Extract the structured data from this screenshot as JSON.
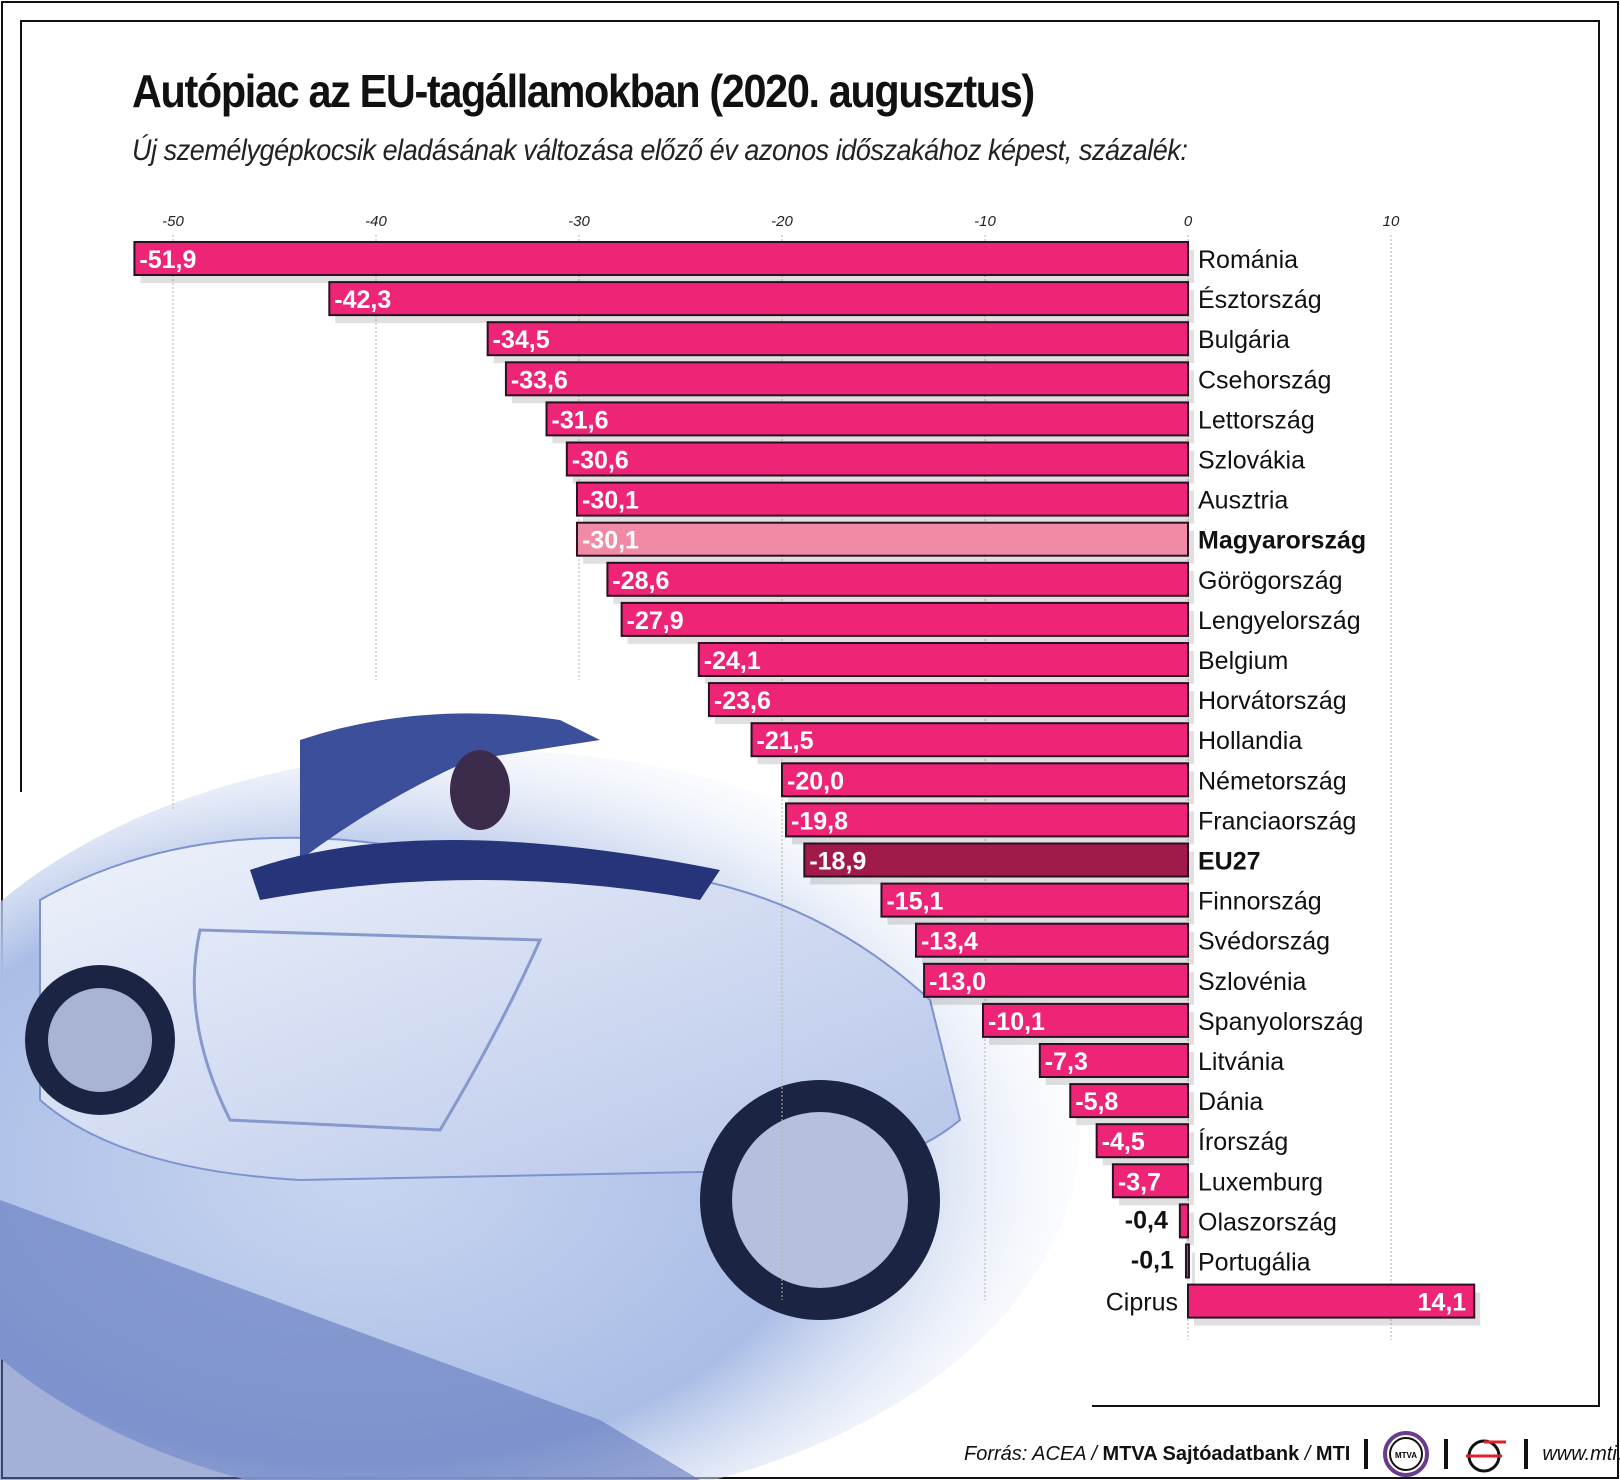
{
  "title": "Autópiac az EU-tagállamokban (2020. augusztus)",
  "subtitle": "Új személygépkocsik eladásának változása előző év azonos időszakához képest, százalék:",
  "chart_data": {
    "type": "bar",
    "orientation": "horizontal",
    "title": "Autópiac az EU-tagállamokban (2020. augusztus)",
    "subtitle": "Új személygépkocsik eladásának változása előző év azonos időszakához képest, százalék:",
    "xlim": [
      -52,
      14.1
    ],
    "xticks": [
      -50,
      -40,
      -30,
      -20,
      -10,
      0,
      10
    ],
    "xtick_labels": [
      "-50",
      "-40",
      "-30",
      "-20",
      "-10",
      "0",
      "10"
    ],
    "grid": true,
    "categories": [
      "Románia",
      "Észtország",
      "Bulgária",
      "Csehország",
      "Lettország",
      "Szlovákia",
      "Ausztria",
      "Magyarország",
      "Görögország",
      "Lengyelország",
      "Belgium",
      "Horvátország",
      "Hollandia",
      "Németország",
      "Franciaország",
      "EU27",
      "Finnország",
      "Svédország",
      "Szlovénia",
      "Spanyolország",
      "Litvánia",
      "Dánia",
      "Írország",
      "Luxemburg",
      "Olaszország",
      "Portugália",
      "Ciprus"
    ],
    "values": [
      -51.9,
      -42.3,
      -34.5,
      -33.6,
      -31.6,
      -30.6,
      -30.1,
      -30.1,
      -28.6,
      -27.9,
      -24.1,
      -23.6,
      -21.5,
      -20.0,
      -19.8,
      -18.9,
      -15.1,
      -13.4,
      -13.0,
      -10.1,
      -7.3,
      -5.8,
      -4.5,
      -3.7,
      -0.4,
      -0.1,
      14.1
    ],
    "value_labels": [
      "-51,9",
      "-42,3",
      "-34,5",
      "-33,6",
      "-31,6",
      "-30,6",
      "-30,1",
      "-30,1",
      "-28,6",
      "-27,9",
      "-24,1",
      "-23,6",
      "-21,5",
      "-20,0",
      "-19,8",
      "-18,9",
      "-15,1",
      "-13,4",
      "-13,0",
      "-10,1",
      "-7,3",
      "-5,8",
      "-4,5",
      "-3,7",
      "-0,4",
      "-0,1",
      "14,1"
    ],
    "highlight": {
      "Magyarország": "#f08aa5",
      "EU27": "#a01a4a"
    },
    "colors": {
      "bar": "#ee2477",
      "hungary": "#f08aa5",
      "eu27": "#a01a4a"
    }
  },
  "footer": {
    "source_prefix": "Forrás: ACEA / ",
    "source_bold": "MTVA Sajtóadatbank",
    "source_sep": " / ",
    "source_mti": "MTI",
    "logo_mtva": "MTVA",
    "url": "www.mti.hu"
  }
}
